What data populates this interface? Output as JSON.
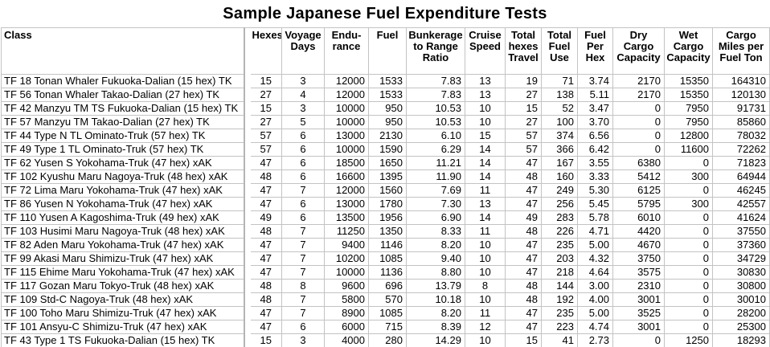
{
  "title": "Sample Japanese Fuel Expenditure Tests",
  "colors": {
    "background": "#ffffff",
    "text": "#000000",
    "gridline": "#c3c3c3",
    "divider": "#b4b4b4"
  },
  "table": {
    "columns": [
      {
        "key": "class",
        "label": "Class",
        "align": "left"
      },
      {
        "key": "hexes",
        "label": "Hexes",
        "align": "center"
      },
      {
        "key": "voyage-days",
        "label": "Voyage Days",
        "align": "center"
      },
      {
        "key": "endurance",
        "label": "Endu-rance",
        "align": "right"
      },
      {
        "key": "fuel",
        "label": "Fuel",
        "align": "right"
      },
      {
        "key": "bunkerage-to-range-ratio",
        "label": "Bunkerage to Range Ratio",
        "align": "right"
      },
      {
        "key": "cruise-speed",
        "label": "Cruise Speed",
        "align": "center"
      },
      {
        "key": "total-hexes-travel",
        "label": "Total hexes Travel",
        "align": "right"
      },
      {
        "key": "total-fuel-use",
        "label": "Total Fuel Use",
        "align": "right"
      },
      {
        "key": "fuel-per-hex",
        "label": "Fuel Per Hex",
        "align": "right"
      },
      {
        "key": "dry-cargo-capacity",
        "label": "Dry Cargo Capacity",
        "align": "right"
      },
      {
        "key": "wet-cargo-capacity",
        "label": "Wet Cargo Capacity",
        "align": "right"
      },
      {
        "key": "cargo-miles-per-fuel-ton",
        "label": "Cargo Miles per Fuel Ton",
        "align": "right"
      }
    ],
    "rows": [
      [
        "TF 18 Tonan Whaler Fukuoka-Dalian (15 hex) TK",
        "15",
        "3",
        "12000",
        "1533",
        "7.83",
        "13",
        "19",
        "71",
        "3.74",
        "2170",
        "15350",
        "164310"
      ],
      [
        "TF 56 Tonan Whaler Takao-Dalian (27 hex) TK",
        "27",
        "4",
        "12000",
        "1533",
        "7.83",
        "13",
        "27",
        "138",
        "5.11",
        "2170",
        "15350",
        "120130"
      ],
      [
        "TF 42 Manzyu TM TS Fukuoka-Dalian (15 hex) TK",
        "15",
        "3",
        "10000",
        "950",
        "10.53",
        "10",
        "15",
        "52",
        "3.47",
        "0",
        "7950",
        "91731"
      ],
      [
        "TF 57 Manzyu TM  Takao-Dalian (27 hex) TK",
        "27",
        "5",
        "10000",
        "950",
        "10.53",
        "10",
        "27",
        "100",
        "3.70",
        "0",
        "7950",
        "85860"
      ],
      [
        "TF 44 Type N TL Ominato-Truk (57 hex) TK",
        "57",
        "6",
        "13000",
        "2130",
        "6.10",
        "15",
        "57",
        "374",
        "6.56",
        "0",
        "12800",
        "78032"
      ],
      [
        "TF 49 Type 1 TL Ominato-Truk (57 hex) TK",
        "57",
        "6",
        "10000",
        "1590",
        "6.29",
        "14",
        "57",
        "366",
        "6.42",
        "0",
        "11600",
        "72262"
      ],
      [
        "TF 62 Yusen S Yokohama-Truk (47 hex) xAK",
        "47",
        "6",
        "18500",
        "1650",
        "11.21",
        "14",
        "47",
        "167",
        "3.55",
        "6380",
        "0",
        "71823"
      ],
      [
        "TF 102 Kyushu Maru Nagoya-Truk (48 hex) xAK",
        "48",
        "6",
        "16600",
        "1395",
        "11.90",
        "14",
        "48",
        "160",
        "3.33",
        "5412",
        "300",
        "64944"
      ],
      [
        "TF 72 Lima Maru Yokohama-Truk (47 hex) xAK",
        "47",
        "7",
        "12000",
        "1560",
        "7.69",
        "11",
        "47",
        "249",
        "5.30",
        "6125",
        "0",
        "46245"
      ],
      [
        "TF 86 Yusen N Yokohama-Truk (47 hex) xAK",
        "47",
        "6",
        "13000",
        "1780",
        "7.30",
        "13",
        "47",
        "256",
        "5.45",
        "5795",
        "300",
        "42557"
      ],
      [
        "TF 110 Yusen A Kagoshima-Truk (49 hex) xAK",
        "49",
        "6",
        "13500",
        "1956",
        "6.90",
        "14",
        "49",
        "283",
        "5.78",
        "6010",
        "0",
        "41624"
      ],
      [
        "TF 103 Husimi Maru Nagoya-Truk (48 hex) xAK",
        "48",
        "7",
        "11250",
        "1350",
        "8.33",
        "11",
        "48",
        "226",
        "4.71",
        "4420",
        "0",
        "37550"
      ],
      [
        "TF 82 Aden Maru Yokohama-Truk (47 hex) xAK",
        "47",
        "7",
        "9400",
        "1146",
        "8.20",
        "10",
        "47",
        "235",
        "5.00",
        "4670",
        "0",
        "37360"
      ],
      [
        "TF 99 Akasi Maru Shimizu-Truk (47 hex) xAK",
        "47",
        "7",
        "10200",
        "1085",
        "9.40",
        "10",
        "47",
        "203",
        "4.32",
        "3750",
        "0",
        "34729"
      ],
      [
        "TF 115 Ehime Maru Yokohama-Truk (47 hex) xAK",
        "47",
        "7",
        "10000",
        "1136",
        "8.80",
        "10",
        "47",
        "218",
        "4.64",
        "3575",
        "0",
        "30830"
      ],
      [
        "TF 117 Gozan Maru Tokyo-Truk (48 hex) xAK",
        "48",
        "8",
        "9600",
        "696",
        "13.79",
        "8",
        "48",
        "144",
        "3.00",
        "2310",
        "0",
        "30800"
      ],
      [
        "TF 109 Std-C Nagoya-Truk (48 hex) xAK",
        "48",
        "7",
        "5800",
        "570",
        "10.18",
        "10",
        "48",
        "192",
        "4.00",
        "3001",
        "0",
        "30010"
      ],
      [
        "TF 100 Toho Maru Shimizu-Truk (47 hex) xAK",
        "47",
        "7",
        "8900",
        "1085",
        "8.20",
        "11",
        "47",
        "235",
        "5.00",
        "3525",
        "0",
        "28200"
      ],
      [
        "TF 101 Ansyu-C Shimizu-Truk (47 hex) xAK",
        "47",
        "6",
        "6000",
        "715",
        "8.39",
        "12",
        "47",
        "223",
        "4.74",
        "3001",
        "0",
        "25300"
      ],
      [
        "TF 43 Type 1 TS Fukuoka-Dalian (15 hex) TK",
        "15",
        "3",
        "4000",
        "280",
        "14.29",
        "10",
        "15",
        "41",
        "2.73",
        "0",
        "1250",
        "18293"
      ]
    ]
  }
}
